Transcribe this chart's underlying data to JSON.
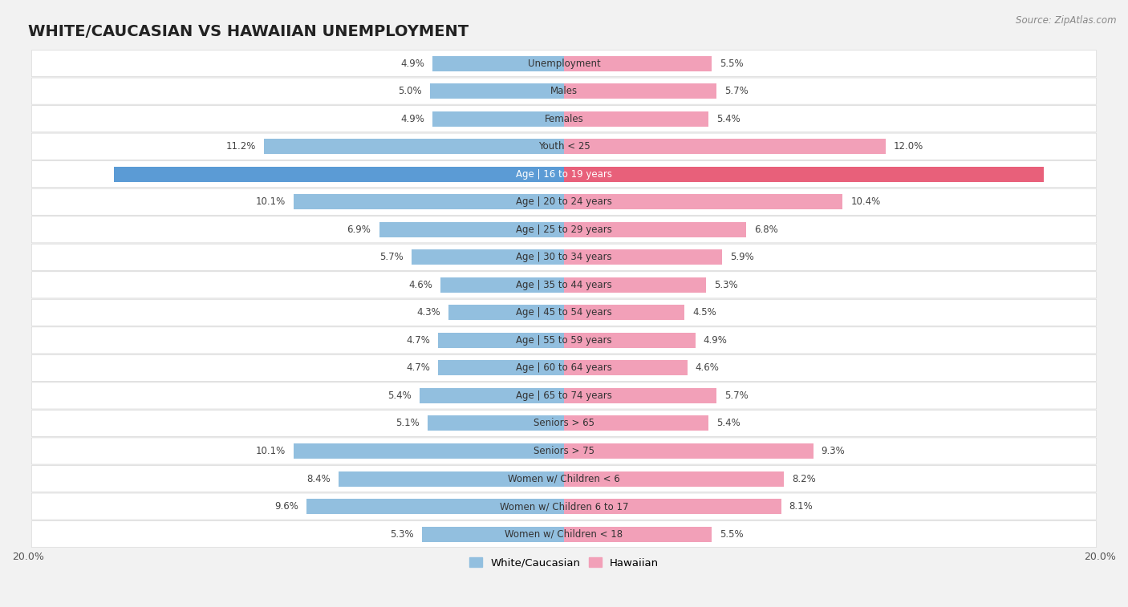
{
  "title": "WHITE/CAUCASIAN VS HAWAIIAN UNEMPLOYMENT",
  "source": "Source: ZipAtlas.com",
  "categories": [
    "Unemployment",
    "Males",
    "Females",
    "Youth < 25",
    "Age | 16 to 19 years",
    "Age | 20 to 24 years",
    "Age | 25 to 29 years",
    "Age | 30 to 34 years",
    "Age | 35 to 44 years",
    "Age | 45 to 54 years",
    "Age | 55 to 59 years",
    "Age | 60 to 64 years",
    "Age | 65 to 74 years",
    "Seniors > 65",
    "Seniors > 75",
    "Women w/ Children < 6",
    "Women w/ Children 6 to 17",
    "Women w/ Children < 18"
  ],
  "white_values": [
    4.9,
    5.0,
    4.9,
    11.2,
    16.8,
    10.1,
    6.9,
    5.7,
    4.6,
    4.3,
    4.7,
    4.7,
    5.4,
    5.1,
    10.1,
    8.4,
    9.6,
    5.3
  ],
  "hawaiian_values": [
    5.5,
    5.7,
    5.4,
    12.0,
    17.9,
    10.4,
    6.8,
    5.9,
    5.3,
    4.5,
    4.9,
    4.6,
    5.7,
    5.4,
    9.3,
    8.2,
    8.1,
    5.5
  ],
  "white_color": "#92bfdf",
  "hawaiian_color": "#f2a0b8",
  "white_highlight_color": "#5b9bd5",
  "hawaiian_highlight_color": "#e8607a",
  "axis_max": 20.0,
  "background_color": "#f2f2f2",
  "card_color": "#ffffff",
  "card_border_color": "#d8d8d8",
  "highlight_row_index": 4,
  "title_fontsize": 14,
  "label_fontsize": 8.5,
  "value_fontsize": 8.5,
  "legend_labels": [
    "White/Caucasian",
    "Hawaiian"
  ]
}
